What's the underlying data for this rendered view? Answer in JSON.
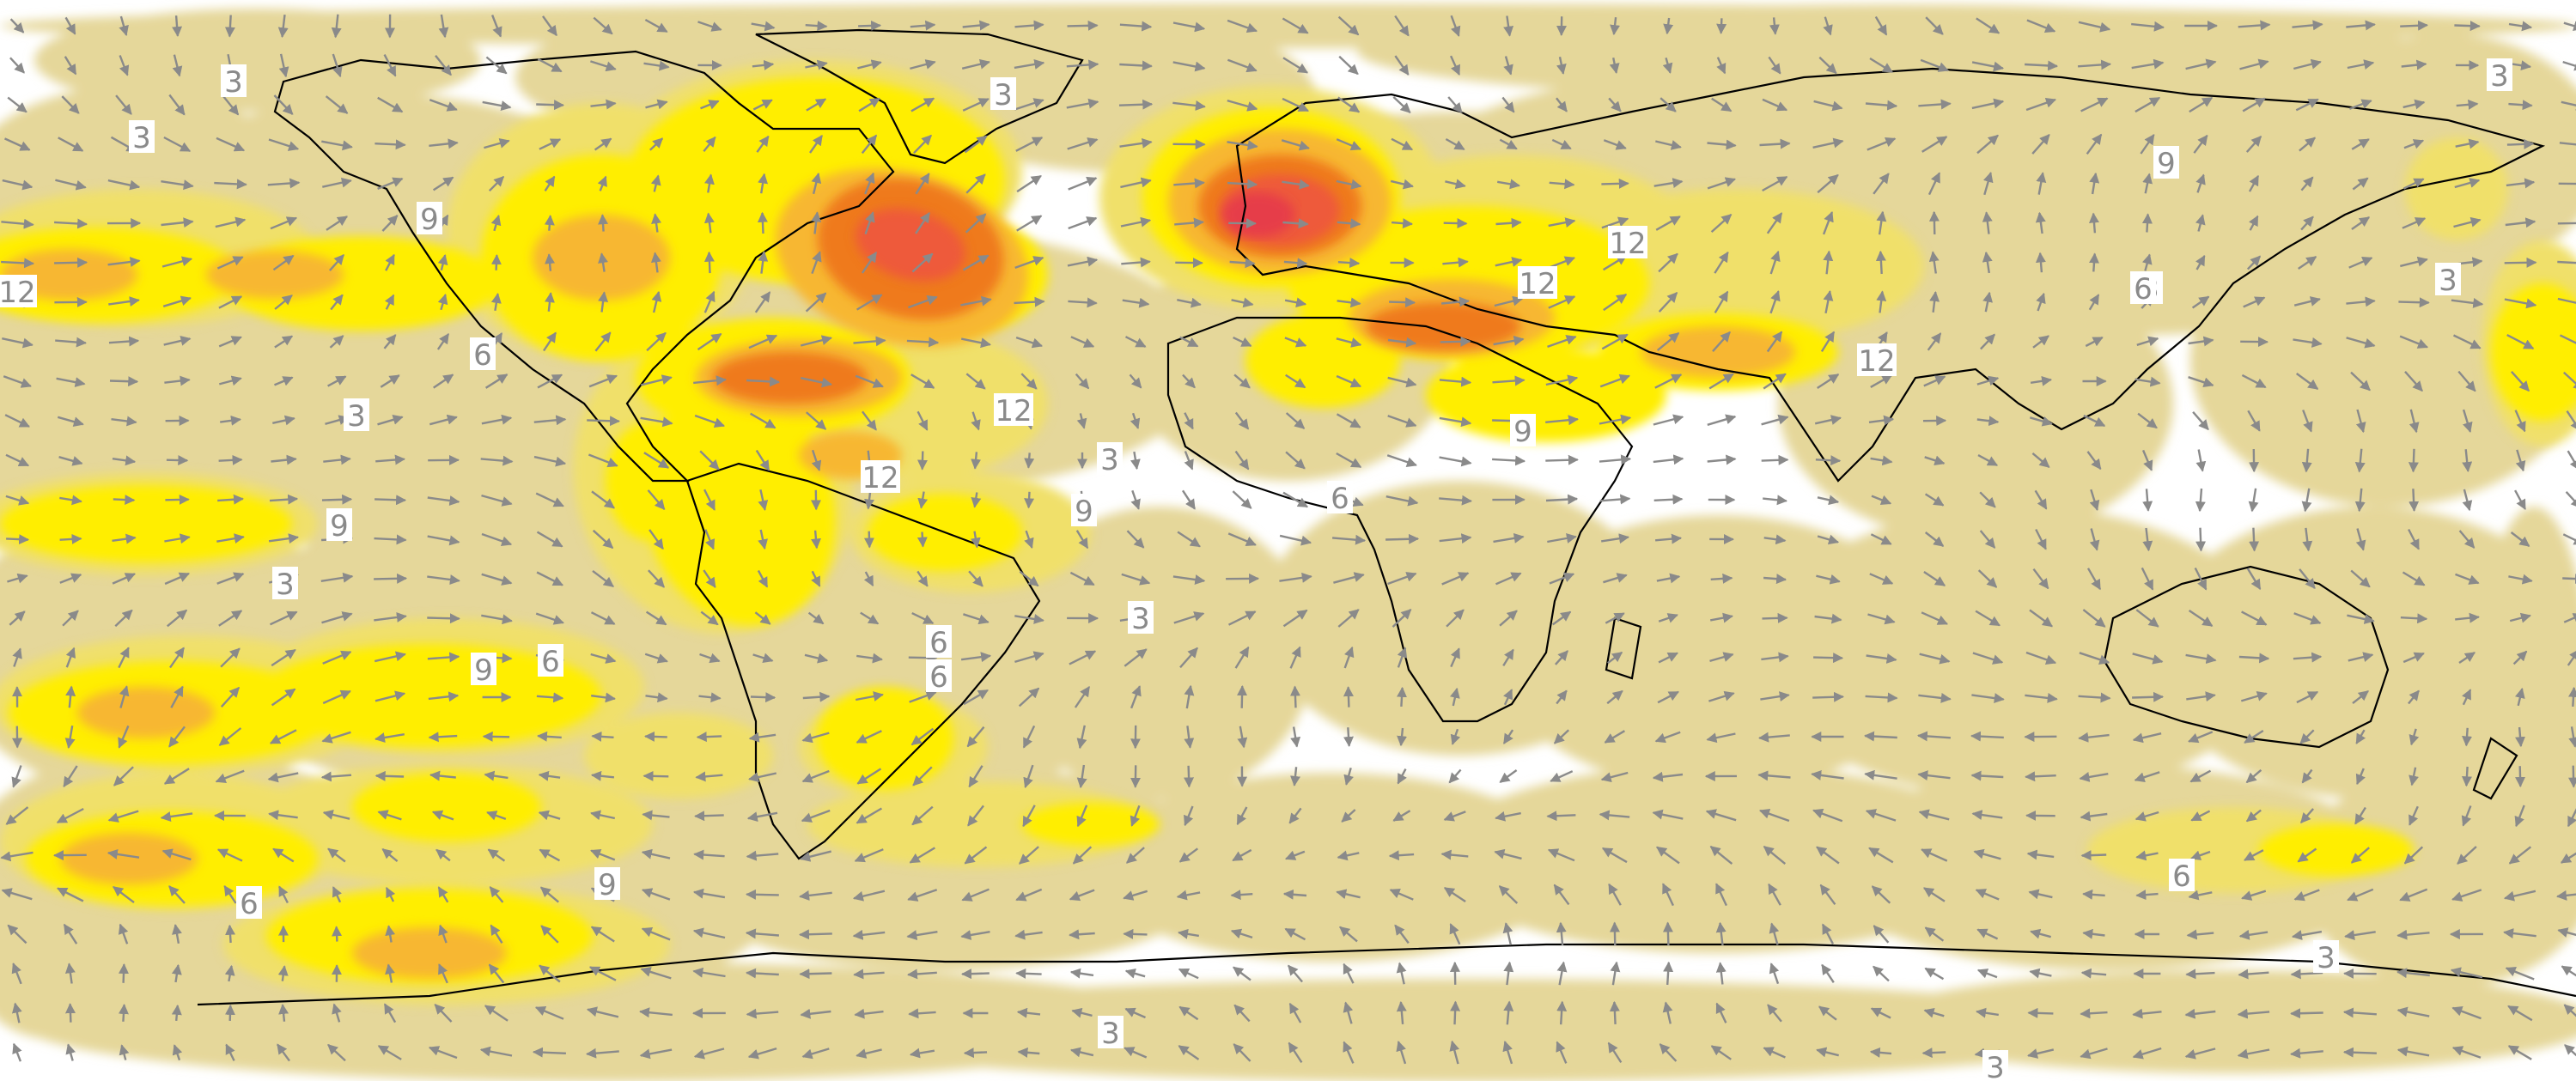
{
  "map": {
    "palette": {
      "background": "#ffffff",
      "level_3": "#e5d79a",
      "level_6": "#f0e06a",
      "level_9": "#ffee00",
      "level_12": "#f7b733",
      "level_15": "#ef7a1d",
      "level_18": "#ee5a3a",
      "level_21": "#e63c4a",
      "arrow": "#8a8a8a",
      "coastline": "#000000"
    },
    "contour_levels": [
      3,
      6,
      9,
      12,
      15,
      18,
      21
    ],
    "contour_labels": [
      "3",
      "3",
      "3",
      "9",
      "12",
      "3",
      "9",
      "3",
      "12",
      "12",
      "12",
      "12",
      "12",
      "3",
      "9",
      "9",
      "6",
      "9",
      "3",
      "9",
      "6",
      "6",
      "3",
      "6",
      "3",
      "6",
      "9",
      "6",
      "3",
      "3",
      "3",
      "3",
      "6",
      "6"
    ],
    "field": "vector wind with speed shading",
    "projection": "equirectangular (global)"
  }
}
